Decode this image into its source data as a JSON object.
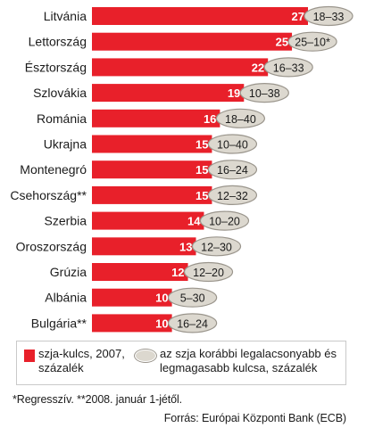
{
  "chart_data": {
    "type": "bar",
    "orientation": "horizontal",
    "categories": [
      "Litvánia",
      "Lettország",
      "Észtország",
      "Szlovákia",
      "Románia",
      "Ukrajna",
      "Montenegró",
      "Csehország**",
      "Szerbia",
      "Oroszország",
      "Grúzia",
      "Albánia",
      "Bulgária**"
    ],
    "values": [
      27,
      25,
      22,
      19,
      16,
      15,
      15,
      15,
      14,
      13,
      12,
      10,
      10
    ],
    "ranges": [
      "18–33",
      "25–10*",
      "16–33",
      "10–38",
      "18–40",
      "10–40",
      "16–24",
      "12–32",
      "10–20",
      "12–30",
      "12–20",
      "5–30",
      "16–24"
    ],
    "xlim": [
      0,
      27
    ],
    "grid": false,
    "legend_position": "bottom",
    "colors": {
      "bar": "#e8202a",
      "oval": "#dcd8cf",
      "oval_border": "#9a958c"
    }
  },
  "legend": {
    "bar_label": "szja-kulcs, 2007, százalék",
    "oval_label": "az szja korábbi legalacsonyabb és legmagasabb kulcsa, százalék"
  },
  "footnote": "*Regresszív. **2008. január 1-jétől.",
  "source": "Forrás: Európai Központi Bank (ECB)"
}
